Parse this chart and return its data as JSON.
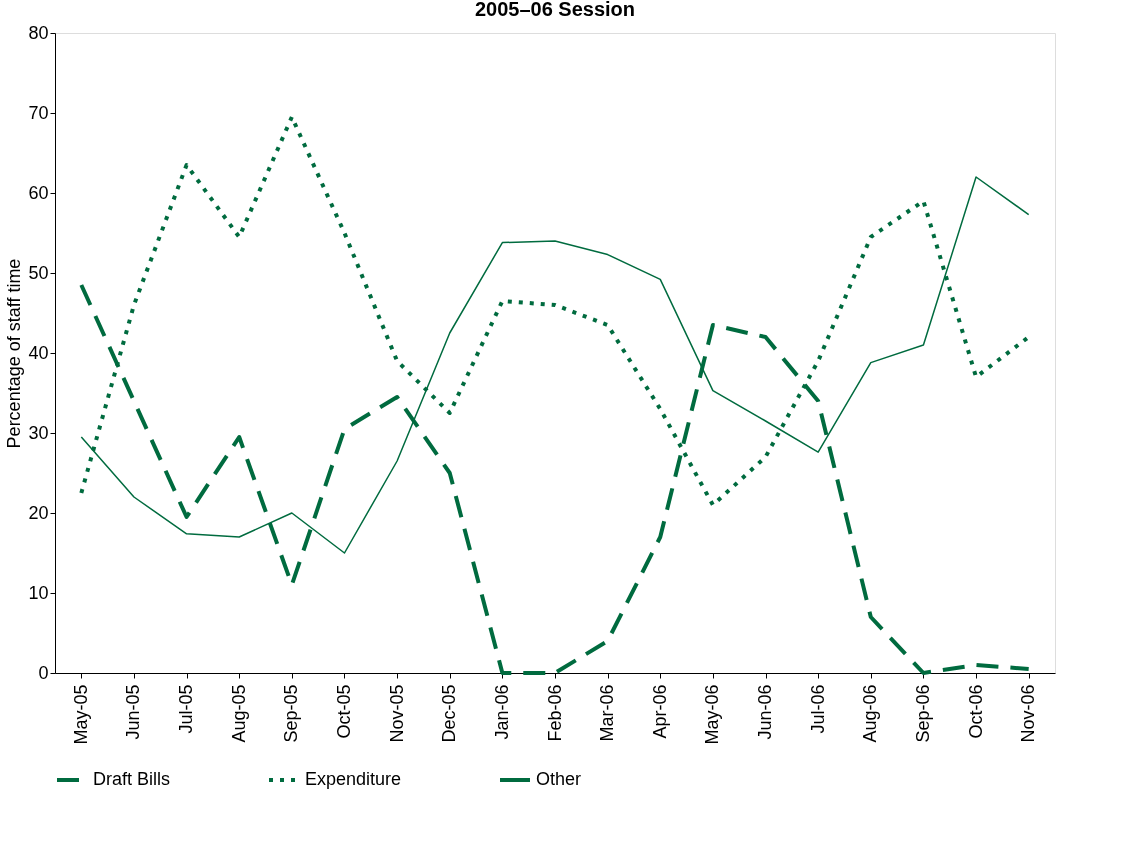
{
  "chart_data": {
    "type": "line",
    "title": "2005–06 Session",
    "ylabel": "Percentage of staff time",
    "categories": [
      "May-05",
      "Jun-05",
      "Jul-05",
      "Aug-05",
      "Sep-05",
      "Oct-05",
      "Nov-05",
      "Dec-05",
      "Jan-06",
      "Feb-06",
      "Mar-06",
      "Apr-06",
      "May-06",
      "Jun-06",
      "Jul-06",
      "Aug-06",
      "Sep-06",
      "Oct-06",
      "Nov-06"
    ],
    "series": [
      {
        "name": "Draft Bills",
        "color": "#006b3f",
        "line_style": "dashed",
        "values": [
          48.5,
          34,
          19.5,
          29.5,
          11,
          30.5,
          34.5,
          25,
          0,
          0,
          4,
          17,
          43.5,
          42,
          34,
          7,
          0,
          1,
          0.5
        ]
      },
      {
        "name": "Expenditure",
        "color": "#006b3f",
        "line_style": "dotted",
        "values": [
          22.5,
          46,
          63.5,
          54.5,
          69.5,
          55,
          39,
          32.5,
          46.5,
          46,
          43.5,
          33,
          21,
          27,
          39,
          54.5,
          59,
          37,
          42
        ]
      },
      {
        "name": "Other",
        "color": "#006b3f",
        "line_style": "solid",
        "values": [
          29.5,
          22,
          17.4,
          17,
          20,
          15,
          26.5,
          42.5,
          53.8,
          54,
          52.3,
          49.2,
          35.3,
          31.5,
          27.6,
          38.8,
          41,
          62,
          57.3
        ]
      }
    ],
    "ylim": [
      0,
      80
    ],
    "yticks": [
      0,
      10,
      20,
      30,
      40,
      50,
      60,
      70,
      80
    ],
    "grid": false,
    "legend": "bottom",
    "marker": "none"
  }
}
